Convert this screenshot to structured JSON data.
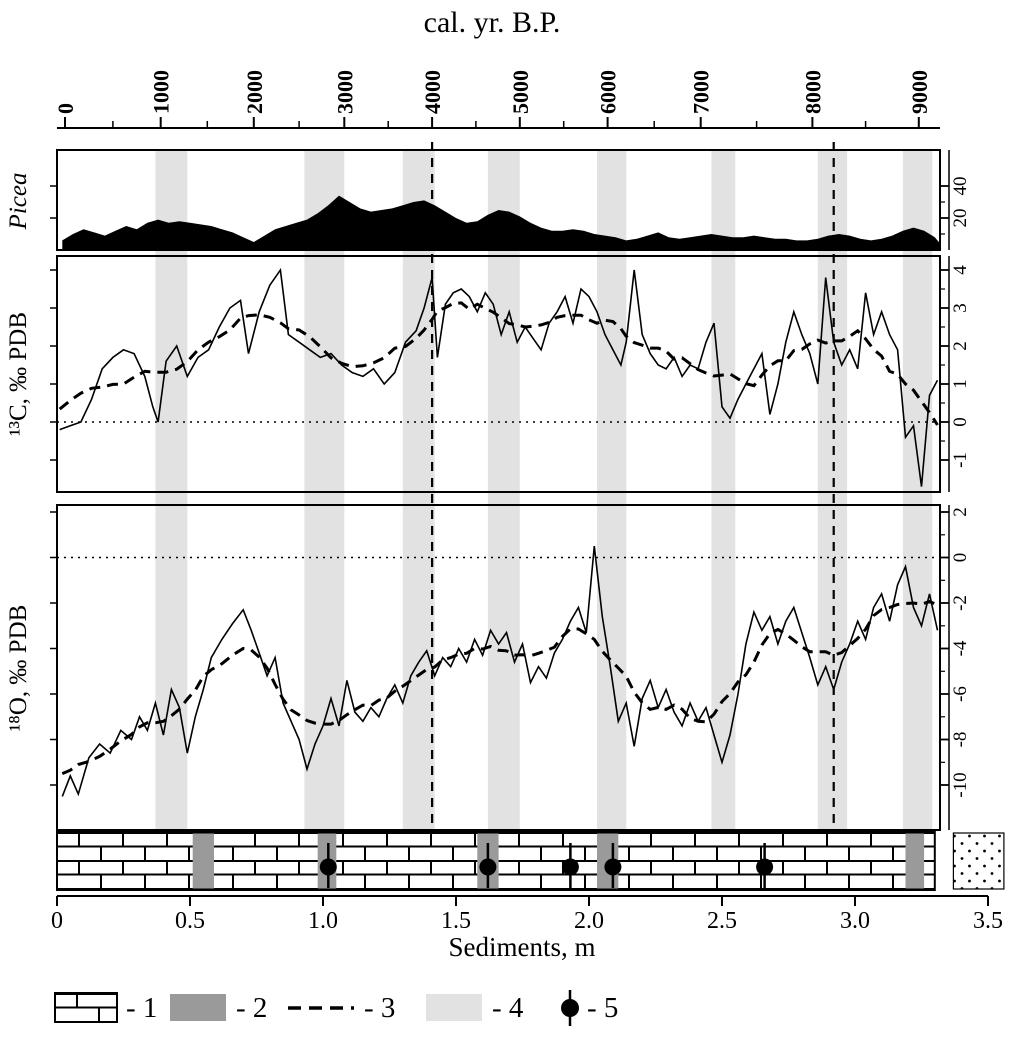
{
  "zones": {
    "light_gray_bands_m": [
      [
        0.37,
        0.49
      ],
      [
        0.93,
        1.08
      ],
      [
        1.3,
        1.42
      ],
      [
        1.62,
        1.74
      ],
      [
        2.03,
        2.14
      ],
      [
        2.46,
        2.55
      ],
      [
        2.86,
        2.97
      ],
      [
        3.18,
        3.29
      ]
    ],
    "dashed_correlation_lines_m": [
      1.41,
      2.92
    ]
  },
  "colors": {
    "background": "#ffffff",
    "black": "#000000",
    "light_gray_band": "#e2e2e2",
    "interbed_gray": "#9a9a9a"
  },
  "legend": {
    "items": [
      {
        "label": "- 1",
        "symbol": "brick-limestone-pattern"
      },
      {
        "label": "- 2",
        "symbol": "gray-interbed-fill"
      },
      {
        "label": "- 3",
        "symbol": "dashed-smoothed-line"
      },
      {
        "label": "- 4",
        "symbol": "light-gray-zone-band"
      },
      {
        "label": "- 5",
        "symbol": "sample-lollipop"
      }
    ]
  },
  "chart_data": [
    {
      "id": "picea_pollen",
      "type": "area",
      "name": "Picea",
      "xlabel": "Sediments, m",
      "xlim": [
        0,
        3.32
      ],
      "ylim": [
        0,
        62
      ],
      "y_right_ticks": [
        20,
        40
      ],
      "fill": "solid-black-silhouette",
      "points_depth_percent": [
        [
          0.02,
          6
        ],
        [
          0.06,
          10
        ],
        [
          0.1,
          13
        ],
        [
          0.14,
          11
        ],
        [
          0.18,
          9
        ],
        [
          0.22,
          12
        ],
        [
          0.26,
          15
        ],
        [
          0.3,
          13
        ],
        [
          0.34,
          17
        ],
        [
          0.38,
          19
        ],
        [
          0.42,
          17
        ],
        [
          0.46,
          18
        ],
        [
          0.5,
          17
        ],
        [
          0.54,
          16
        ],
        [
          0.58,
          15
        ],
        [
          0.62,
          13
        ],
        [
          0.66,
          11
        ],
        [
          0.7,
          8
        ],
        [
          0.74,
          5
        ],
        [
          0.78,
          9
        ],
        [
          0.82,
          13
        ],
        [
          0.86,
          15
        ],
        [
          0.9,
          17
        ],
        [
          0.94,
          19
        ],
        [
          0.98,
          23
        ],
        [
          1.02,
          28
        ],
        [
          1.06,
          34
        ],
        [
          1.1,
          30
        ],
        [
          1.14,
          26
        ],
        [
          1.18,
          24
        ],
        [
          1.22,
          25
        ],
        [
          1.26,
          26
        ],
        [
          1.3,
          28
        ],
        [
          1.34,
          30
        ],
        [
          1.38,
          31
        ],
        [
          1.42,
          28
        ],
        [
          1.46,
          24
        ],
        [
          1.5,
          20
        ],
        [
          1.54,
          17
        ],
        [
          1.58,
          18
        ],
        [
          1.62,
          22
        ],
        [
          1.66,
          25
        ],
        [
          1.7,
          24
        ],
        [
          1.74,
          21
        ],
        [
          1.78,
          17
        ],
        [
          1.82,
          14
        ],
        [
          1.86,
          12
        ],
        [
          1.9,
          12
        ],
        [
          1.94,
          13
        ],
        [
          1.98,
          12
        ],
        [
          2.02,
          10
        ],
        [
          2.06,
          9
        ],
        [
          2.1,
          8
        ],
        [
          2.14,
          6
        ],
        [
          2.18,
          7
        ],
        [
          2.22,
          9
        ],
        [
          2.26,
          11
        ],
        [
          2.3,
          8
        ],
        [
          2.34,
          7
        ],
        [
          2.38,
          8
        ],
        [
          2.42,
          9
        ],
        [
          2.46,
          10
        ],
        [
          2.5,
          9
        ],
        [
          2.54,
          8
        ],
        [
          2.58,
          8
        ],
        [
          2.62,
          9
        ],
        [
          2.66,
          8
        ],
        [
          2.7,
          7
        ],
        [
          2.74,
          7
        ],
        [
          2.78,
          6
        ],
        [
          2.82,
          6
        ],
        [
          2.86,
          7
        ],
        [
          2.9,
          9
        ],
        [
          2.94,
          10
        ],
        [
          2.98,
          9
        ],
        [
          3.02,
          7
        ],
        [
          3.06,
          6
        ],
        [
          3.1,
          7
        ],
        [
          3.14,
          9
        ],
        [
          3.18,
          12
        ],
        [
          3.22,
          14
        ],
        [
          3.26,
          12
        ],
        [
          3.3,
          8
        ],
        [
          3.32,
          4
        ]
      ]
    },
    {
      "id": "delta13C",
      "type": "line",
      "name": "¹³C, ‰ PDB",
      "xlim": [
        0,
        3.32
      ],
      "ylim": [
        -2.1,
        4.4
      ],
      "yticks": [
        4,
        3,
        2,
        1,
        0,
        -1
      ],
      "zero_reference_line": "dotted",
      "smoothed_overlay": "centered moving average shown as bold dashed line (legend item 3)",
      "points_depth_permil": [
        [
          0.01,
          -0.2
        ],
        [
          0.05,
          -0.1
        ],
        [
          0.09,
          0.0
        ],
        [
          0.13,
          0.6
        ],
        [
          0.17,
          1.4
        ],
        [
          0.21,
          1.7
        ],
        [
          0.25,
          1.9
        ],
        [
          0.29,
          1.8
        ],
        [
          0.33,
          1.2
        ],
        [
          0.36,
          0.4
        ],
        [
          0.38,
          0.0
        ],
        [
          0.41,
          1.6
        ],
        [
          0.45,
          2.0
        ],
        [
          0.49,
          1.2
        ],
        [
          0.53,
          1.7
        ],
        [
          0.57,
          1.9
        ],
        [
          0.61,
          2.5
        ],
        [
          0.65,
          3.0
        ],
        [
          0.69,
          3.2
        ],
        [
          0.72,
          1.8
        ],
        [
          0.76,
          2.9
        ],
        [
          0.8,
          3.6
        ],
        [
          0.84,
          4.0
        ],
        [
          0.87,
          2.3
        ],
        [
          0.91,
          2.1
        ],
        [
          0.95,
          1.9
        ],
        [
          0.99,
          1.7
        ],
        [
          1.03,
          1.8
        ],
        [
          1.07,
          1.5
        ],
        [
          1.11,
          1.3
        ],
        [
          1.15,
          1.2
        ],
        [
          1.19,
          1.4
        ],
        [
          1.23,
          1.0
        ],
        [
          1.27,
          1.3
        ],
        [
          1.31,
          2.1
        ],
        [
          1.35,
          2.4
        ],
        [
          1.38,
          3.0
        ],
        [
          1.41,
          3.8
        ],
        [
          1.43,
          1.7
        ],
        [
          1.46,
          3.1
        ],
        [
          1.49,
          3.4
        ],
        [
          1.52,
          3.5
        ],
        [
          1.55,
          3.3
        ],
        [
          1.58,
          2.9
        ],
        [
          1.61,
          3.4
        ],
        [
          1.64,
          3.1
        ],
        [
          1.67,
          2.3
        ],
        [
          1.7,
          2.9
        ],
        [
          1.73,
          2.1
        ],
        [
          1.76,
          2.5
        ],
        [
          1.79,
          2.2
        ],
        [
          1.82,
          1.9
        ],
        [
          1.85,
          2.6
        ],
        [
          1.88,
          2.9
        ],
        [
          1.91,
          3.3
        ],
        [
          1.94,
          2.6
        ],
        [
          1.97,
          3.5
        ],
        [
          2.0,
          3.3
        ],
        [
          2.03,
          2.9
        ],
        [
          2.06,
          2.3
        ],
        [
          2.09,
          1.9
        ],
        [
          2.12,
          1.5
        ],
        [
          2.14,
          2.1
        ],
        [
          2.17,
          4.0
        ],
        [
          2.2,
          2.3
        ],
        [
          2.23,
          1.8
        ],
        [
          2.26,
          1.5
        ],
        [
          2.29,
          1.4
        ],
        [
          2.32,
          1.7
        ],
        [
          2.35,
          1.2
        ],
        [
          2.38,
          1.5
        ],
        [
          2.41,
          1.4
        ],
        [
          2.44,
          2.1
        ],
        [
          2.47,
          2.6
        ],
        [
          2.5,
          0.4
        ],
        [
          2.53,
          0.1
        ],
        [
          2.56,
          0.6
        ],
        [
          2.59,
          1.0
        ],
        [
          2.62,
          1.4
        ],
        [
          2.65,
          1.8
        ],
        [
          2.68,
          0.2
        ],
        [
          2.71,
          1.0
        ],
        [
          2.74,
          2.1
        ],
        [
          2.77,
          2.9
        ],
        [
          2.8,
          2.3
        ],
        [
          2.83,
          1.8
        ],
        [
          2.86,
          1.0
        ],
        [
          2.89,
          3.8
        ],
        [
          2.92,
          2.1
        ],
        [
          2.95,
          1.5
        ],
        [
          2.98,
          1.9
        ],
        [
          3.01,
          1.4
        ],
        [
          3.04,
          3.4
        ],
        [
          3.07,
          2.3
        ],
        [
          3.1,
          2.9
        ],
        [
          3.13,
          2.3
        ],
        [
          3.16,
          1.9
        ],
        [
          3.19,
          -0.4
        ],
        [
          3.22,
          -0.1
        ],
        [
          3.25,
          -1.7
        ],
        [
          3.28,
          0.7
        ],
        [
          3.31,
          1.1
        ]
      ]
    },
    {
      "id": "delta18O",
      "type": "line",
      "name": "¹⁸O, ‰ PDB",
      "xlim": [
        0,
        3.32
      ],
      "ylim": [
        -12.3,
        2.3
      ],
      "yticks": [
        2,
        0,
        -2,
        -4,
        -6,
        -8,
        -10
      ],
      "zero_reference_line": "dotted",
      "smoothed_overlay": "centered moving average shown as bold dashed line (legend item 3)",
      "points_depth_permil": [
        [
          0.02,
          -10.5
        ],
        [
          0.05,
          -9.6
        ],
        [
          0.08,
          -10.4
        ],
        [
          0.12,
          -8.8
        ],
        [
          0.16,
          -8.2
        ],
        [
          0.2,
          -8.6
        ],
        [
          0.24,
          -7.6
        ],
        [
          0.28,
          -8.0
        ],
        [
          0.31,
          -7.0
        ],
        [
          0.34,
          -7.6
        ],
        [
          0.37,
          -6.4
        ],
        [
          0.4,
          -7.8
        ],
        [
          0.43,
          -5.8
        ],
        [
          0.46,
          -6.6
        ],
        [
          0.49,
          -8.6
        ],
        [
          0.52,
          -7.0
        ],
        [
          0.55,
          -5.8
        ],
        [
          0.58,
          -4.4
        ],
        [
          0.62,
          -3.6
        ],
        [
          0.66,
          -2.9
        ],
        [
          0.7,
          -2.3
        ],
        [
          0.73,
          -3.2
        ],
        [
          0.76,
          -4.2
        ],
        [
          0.79,
          -5.2
        ],
        [
          0.82,
          -4.4
        ],
        [
          0.85,
          -6.4
        ],
        [
          0.88,
          -7.2
        ],
        [
          0.91,
          -8.0
        ],
        [
          0.94,
          -9.3
        ],
        [
          0.97,
          -8.2
        ],
        [
          1.0,
          -7.4
        ],
        [
          1.03,
          -6.2
        ],
        [
          1.06,
          -7.4
        ],
        [
          1.09,
          -5.4
        ],
        [
          1.12,
          -6.8
        ],
        [
          1.15,
          -7.2
        ],
        [
          1.18,
          -6.6
        ],
        [
          1.21,
          -7.0
        ],
        [
          1.24,
          -6.2
        ],
        [
          1.27,
          -5.6
        ],
        [
          1.3,
          -6.4
        ],
        [
          1.33,
          -5.2
        ],
        [
          1.36,
          -4.6
        ],
        [
          1.39,
          -4.1
        ],
        [
          1.42,
          -5.2
        ],
        [
          1.45,
          -4.4
        ],
        [
          1.48,
          -4.8
        ],
        [
          1.51,
          -4.0
        ],
        [
          1.54,
          -4.6
        ],
        [
          1.57,
          -3.6
        ],
        [
          1.6,
          -4.3
        ],
        [
          1.63,
          -3.2
        ],
        [
          1.66,
          -3.8
        ],
        [
          1.69,
          -3.3
        ],
        [
          1.72,
          -4.6
        ],
        [
          1.75,
          -3.8
        ],
        [
          1.78,
          -5.5
        ],
        [
          1.81,
          -4.8
        ],
        [
          1.84,
          -5.3
        ],
        [
          1.87,
          -4.2
        ],
        [
          1.9,
          -3.6
        ],
        [
          1.93,
          -2.8
        ],
        [
          1.96,
          -2.2
        ],
        [
          1.99,
          -3.3
        ],
        [
          2.02,
          0.5
        ],
        [
          2.05,
          -2.6
        ],
        [
          2.08,
          -4.8
        ],
        [
          2.11,
          -7.2
        ],
        [
          2.14,
          -6.4
        ],
        [
          2.17,
          -8.3
        ],
        [
          2.2,
          -6.2
        ],
        [
          2.23,
          -5.4
        ],
        [
          2.26,
          -6.6
        ],
        [
          2.29,
          -5.8
        ],
        [
          2.32,
          -6.8
        ],
        [
          2.35,
          -7.4
        ],
        [
          2.38,
          -6.4
        ],
        [
          2.41,
          -7.2
        ],
        [
          2.44,
          -6.6
        ],
        [
          2.47,
          -7.8
        ],
        [
          2.5,
          -9.0
        ],
        [
          2.53,
          -7.8
        ],
        [
          2.56,
          -6.0
        ],
        [
          2.59,
          -3.8
        ],
        [
          2.62,
          -2.4
        ],
        [
          2.65,
          -3.2
        ],
        [
          2.68,
          -2.6
        ],
        [
          2.71,
          -3.8
        ],
        [
          2.74,
          -2.8
        ],
        [
          2.77,
          -2.2
        ],
        [
          2.8,
          -3.3
        ],
        [
          2.83,
          -4.4
        ],
        [
          2.86,
          -5.6
        ],
        [
          2.89,
          -4.8
        ],
        [
          2.92,
          -5.8
        ],
        [
          2.95,
          -4.6
        ],
        [
          2.98,
          -3.8
        ],
        [
          3.01,
          -2.8
        ],
        [
          3.04,
          -3.6
        ],
        [
          3.07,
          -2.2
        ],
        [
          3.1,
          -1.6
        ],
        [
          3.13,
          -2.8
        ],
        [
          3.16,
          -1.2
        ],
        [
          3.19,
          -0.4
        ],
        [
          3.22,
          -2.2
        ],
        [
          3.25,
          -3.0
        ],
        [
          3.28,
          -1.6
        ],
        [
          3.31,
          -3.2
        ]
      ]
    },
    {
      "id": "lithology",
      "type": "strat-column",
      "extent_m": [
        0,
        3.3
      ],
      "main_lithology": "brick-limestone-pattern",
      "gray_interbeds_m": [
        [
          0.51,
          0.59
        ],
        [
          0.98,
          1.05
        ],
        [
          1.58,
          1.66
        ],
        [
          2.03,
          2.11
        ],
        [
          3.19,
          3.26
        ]
      ],
      "sample_points_m": [
        1.02,
        1.62,
        1.93,
        2.09,
        2.66
      ],
      "dotted_block_m": [
        3.37,
        3.56
      ]
    },
    {
      "id": "age_depth_axis",
      "type": "axis",
      "orientation": "top",
      "title": "cal. yr. B.P.",
      "ticks": [
        {
          "label": "0",
          "depth_m": 0.03
        },
        {
          "label": "1000",
          "depth_m": 0.39
        },
        {
          "label": "2000",
          "depth_m": 0.74
        },
        {
          "label": "3000",
          "depth_m": 1.08
        },
        {
          "label": "4000",
          "depth_m": 1.41
        },
        {
          "label": "5000",
          "depth_m": 1.74
        },
        {
          "label": "6000",
          "depth_m": 2.07
        },
        {
          "label": "7000",
          "depth_m": 2.42
        },
        {
          "label": "8000",
          "depth_m": 2.84
        },
        {
          "label": "9000",
          "depth_m": 3.24
        }
      ]
    },
    {
      "id": "depth_axis",
      "type": "axis",
      "orientation": "bottom",
      "label": "Sediments, m",
      "ticks": [
        {
          "label": "0",
          "m": 0
        },
        {
          "label": "0.5",
          "m": 0.5
        },
        {
          "label": "1.0",
          "m": 1.0
        },
        {
          "label": "1.5",
          "m": 1.5
        },
        {
          "label": "2.0",
          "m": 2.0
        },
        {
          "label": "2.5",
          "m": 2.5
        },
        {
          "label": "3.0",
          "m": 3.0
        },
        {
          "label": "3.5",
          "m": 3.5
        }
      ]
    }
  ]
}
